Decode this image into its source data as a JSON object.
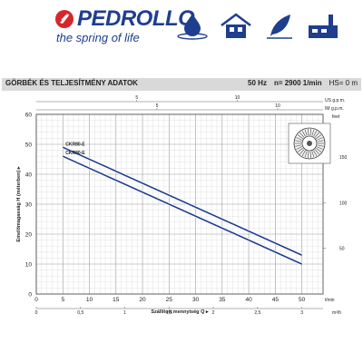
{
  "brand": {
    "name": "PEDROLLO",
    "tagline": "the spring of life"
  },
  "usage_icons": [
    "water-drop-icon",
    "house-icon",
    "leaf-irrigation-icon",
    "factory-icon"
  ],
  "header_band": {
    "title": "GÖRBÉK ÉS TELJESÍTMÉNY ADATOK",
    "frequency": "50 Hz",
    "speed": "n= 2900  1/min",
    "hs": "HS= 0 m"
  },
  "chart_data": {
    "type": "line",
    "xlabel": "Szállított mennyiség  Q",
    "ylabel": "Emelőmagasság  H  (méterben)",
    "xlim": [
      0,
      54
    ],
    "ylim": [
      0,
      60
    ],
    "x_ticks": [
      0,
      5,
      10,
      15,
      20,
      25,
      30,
      35,
      40,
      45,
      50
    ],
    "y_ticks": [
      0,
      10,
      20,
      30,
      40,
      50,
      60
    ],
    "x_unit_label": "l/min",
    "x_secondary": {
      "unit": "m³/h",
      "ticks": [
        "0",
        "0,5",
        "1",
        "1,5",
        "2",
        "2,5",
        "3"
      ],
      "values": [
        0,
        0.5,
        1,
        1.5,
        2,
        2.5,
        3
      ]
    },
    "x_top": {
      "units": [
        "US g.p.m.",
        "IM g.p.m."
      ],
      "us_ticks": [
        "5",
        "10"
      ],
      "us_values": [
        5,
        10
      ],
      "im_ticks": [
        "5",
        "10"
      ],
      "im_values": [
        5,
        10
      ]
    },
    "y_right": {
      "unit": "feet",
      "ticks": [
        "50",
        "100",
        "150"
      ],
      "values": [
        50,
        100,
        150
      ]
    },
    "series": [
      {
        "name": "CKR80-E",
        "x": [
          5,
          50
        ],
        "y": [
          49,
          13
        ],
        "color": "#1f3e8f"
      },
      {
        "name": "CKR80-E",
        "x": [
          5,
          50
        ],
        "y": [
          46,
          10
        ],
        "color": "#1f3e8f"
      }
    ],
    "grid": true
  }
}
